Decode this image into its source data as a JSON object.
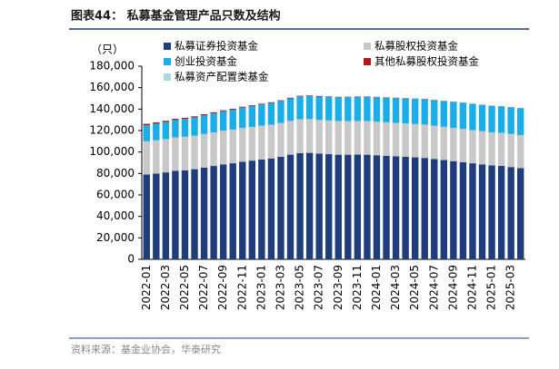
{
  "chart_data": {
    "type": "stacked-bar",
    "title": "图表44：  私募基金管理产品只数及结构",
    "y_unit": "（只）",
    "source": "资料来源：基金业协会，华泰研究",
    "categories": [
      "2022-01",
      null,
      "2022-03",
      null,
      "2022-05",
      null,
      "2022-07",
      null,
      "2022-09",
      null,
      "2022-11",
      null,
      "2023-01",
      null,
      "2023-03",
      null,
      "2023-05",
      null,
      "2023-07",
      null,
      "2023-09",
      null,
      "2023-11",
      null,
      "2024-01",
      null,
      "2024-03",
      null,
      "2024-05",
      null,
      "2024-07",
      null,
      "2024-09",
      null,
      "2024-11",
      null,
      "2025-01",
      null,
      "2025-03",
      null
    ],
    "series": [
      {
        "name": "私募证券投资基金",
        "color": "#1f3d7a",
        "values": [
          79000,
          80000,
          81000,
          82500,
          83000,
          84000,
          85500,
          87000,
          88500,
          89500,
          91000,
          92000,
          93000,
          94000,
          95500,
          97500,
          99000,
          99200,
          98500,
          98000,
          97500,
          97500,
          97600,
          97500,
          97000,
          96500,
          96000,
          95500,
          95000,
          94500,
          93500,
          92500,
          91500,
          90500,
          89500,
          88500,
          87500,
          87000,
          86000,
          85000
        ]
      },
      {
        "name": "私募股权投资基金",
        "color": "#c8c8c8",
        "values": [
          31000,
          31000,
          31100,
          31100,
          31200,
          31200,
          31300,
          31300,
          31300,
          31400,
          31400,
          31400,
          31500,
          31500,
          31500,
          31500,
          31500,
          31500,
          31400,
          31400,
          31400,
          31300,
          31300,
          31300,
          31200,
          31200,
          31200,
          31100,
          31100,
          31100,
          31000,
          31000,
          31000,
          31000,
          30900,
          30900,
          30900,
          30800,
          30800,
          30800
        ]
      },
      {
        "name": "创业投资基金",
        "color": "#19aee8",
        "values": [
          15000,
          15400,
          15800,
          16200,
          16600,
          17000,
          17400,
          17800,
          18200,
          18600,
          19000,
          19400,
          19800,
          20200,
          20600,
          21000,
          21400,
          21600,
          21800,
          22000,
          22100,
          22300,
          22400,
          22600,
          22800,
          22900,
          23100,
          23300,
          23400,
          23600,
          23800,
          23900,
          24100,
          24300,
          24400,
          24500,
          24600,
          24700,
          24900,
          25000
        ]
      },
      {
        "name": "其他私募股权投资基金",
        "color": "#b01a1a",
        "values": [
          1300,
          1250,
          1200,
          1150,
          1100,
          1050,
          1000,
          950,
          900,
          850,
          800,
          760,
          720,
          680,
          640,
          600,
          570,
          540,
          510,
          480,
          450,
          430,
          410,
          390,
          370,
          350,
          330,
          310,
          290,
          270,
          250,
          240,
          230,
          220,
          210,
          200,
          190,
          180,
          170,
          160
        ]
      },
      {
        "name": "私募资产配置类基金",
        "color": "#a8d8dc",
        "values": [
          5,
          6,
          7,
          8,
          9,
          10,
          11,
          12,
          13,
          14,
          15,
          16,
          17,
          18,
          19,
          20,
          21,
          22,
          23,
          24,
          25,
          26,
          27,
          28,
          29,
          30,
          31,
          32,
          33,
          34,
          35,
          36,
          37,
          38,
          39,
          40,
          41,
          42,
          43,
          44
        ]
      }
    ],
    "ylim": [
      0,
      180000
    ],
    "yticks": [
      0,
      {
        "value": 20000,
        "label": "20,000"
      },
      {
        "value": 40000,
        "label": "40,000"
      },
      {
        "value": 60000,
        "label": "60,000"
      },
      {
        "value": 80000,
        "label": "80,000"
      },
      {
        "value": 100000,
        "label": "100,000"
      },
      {
        "value": 120000,
        "label": "120,000"
      },
      {
        "value": 140000,
        "label": "140,000"
      },
      {
        "value": 160000,
        "label": "160,000"
      },
      {
        "value": 180000,
        "label": "180,000"
      }
    ]
  }
}
